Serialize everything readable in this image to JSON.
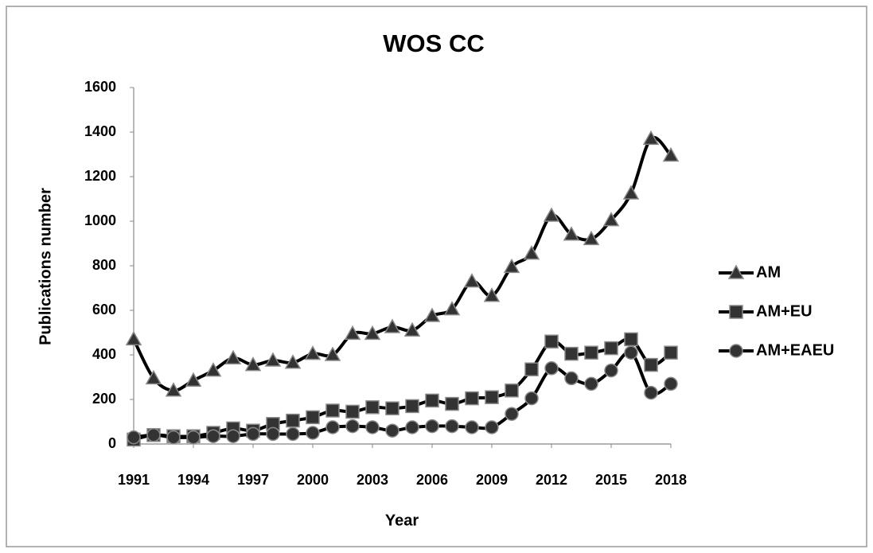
{
  "chart_data": {
    "type": "line",
    "title": "WOS CC",
    "x_label": "Year",
    "y_label": "Publications number",
    "x": [
      1991,
      1992,
      1993,
      1994,
      1995,
      1996,
      1997,
      1998,
      1999,
      2000,
      2001,
      2002,
      2003,
      2004,
      2005,
      2006,
      2007,
      2008,
      2009,
      2010,
      2011,
      2012,
      2013,
      2014,
      2015,
      2016,
      2017,
      2018
    ],
    "xlim": [
      1991,
      2018
    ],
    "xticks": [
      1991,
      1994,
      1997,
      2000,
      2003,
      2006,
      2009,
      2012,
      2015,
      2018
    ],
    "ylim": [
      0,
      1600
    ],
    "yticks": [
      0,
      200,
      400,
      600,
      800,
      1000,
      1200,
      1400,
      1600
    ],
    "grid": false,
    "legend": "right",
    "series": [
      {
        "name": "AM",
        "color": "#000000",
        "marker": "triangle",
        "values": [
          470,
          295,
          240,
          285,
          330,
          385,
          355,
          375,
          365,
          405,
          400,
          495,
          495,
          525,
          510,
          575,
          605,
          730,
          665,
          795,
          855,
          1025,
          940,
          920,
          1005,
          1125,
          1370,
          1295
        ]
      },
      {
        "name": "AM+EU",
        "color": "#000000",
        "marker": "square",
        "values": [
          20,
          40,
          35,
          35,
          50,
          70,
          60,
          90,
          105,
          120,
          150,
          145,
          165,
          160,
          170,
          195,
          180,
          205,
          210,
          240,
          335,
          460,
          405,
          410,
          430,
          470,
          355,
          410
        ]
      },
      {
        "name": "AM+EAEU",
        "color": "#000000",
        "marker": "circle",
        "values": [
          30,
          40,
          30,
          30,
          35,
          35,
          45,
          45,
          45,
          50,
          75,
          80,
          75,
          60,
          75,
          80,
          80,
          75,
          75,
          135,
          205,
          340,
          295,
          270,
          330,
          410,
          230,
          270
        ]
      }
    ]
  }
}
